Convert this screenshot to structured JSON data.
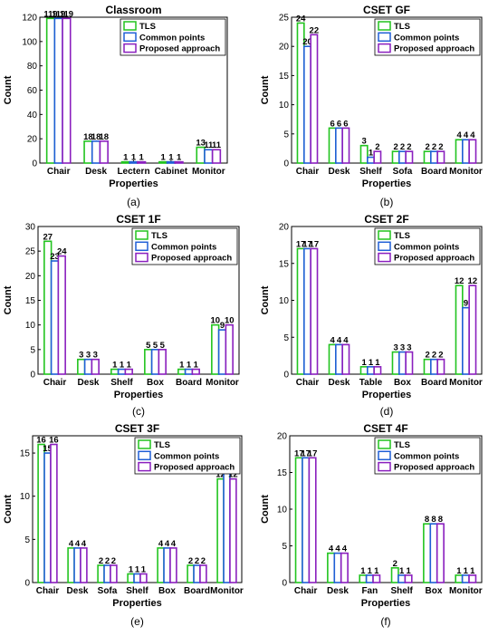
{
  "colors": {
    "tls": "#22c41f",
    "common": "#1f5fd6",
    "proposed": "#8a1fbe"
  },
  "legend_labels": [
    "TLS",
    "Common points",
    "Proposed approach"
  ],
  "chart_data": [
    {
      "type": "bar",
      "title": "Classroom",
      "caption": "(a)",
      "xlabel": "Properties",
      "ylabel": "Count",
      "ylim": [
        0,
        120
      ],
      "yticks": [
        0,
        20,
        40,
        60,
        80,
        100,
        120
      ],
      "categories": [
        "Chair",
        "Desk",
        "Lectern",
        "Cabinet",
        "Monitor"
      ],
      "series": [
        {
          "name": "TLS",
          "values": [
            119,
            18,
            1,
            1,
            13
          ]
        },
        {
          "name": "Common points",
          "values": [
            119,
            18,
            1,
            1,
            11
          ]
        },
        {
          "name": "Proposed approach",
          "values": [
            119,
            18,
            1,
            1,
            11
          ]
        }
      ],
      "legend": "top-right",
      "grid": false
    },
    {
      "type": "bar",
      "title": "CSET GF",
      "caption": "(b)",
      "xlabel": "Properties",
      "ylabel": "Count",
      "ylim": [
        0,
        25
      ],
      "yticks": [
        0,
        5,
        10,
        15,
        20,
        25
      ],
      "categories": [
        "Chair",
        "Desk",
        "Shelf",
        "Sofa",
        "Board",
        "Monitor"
      ],
      "series": [
        {
          "name": "TLS",
          "values": [
            24,
            6,
            3,
            2,
            2,
            4
          ]
        },
        {
          "name": "Common points",
          "values": [
            20,
            6,
            1,
            2,
            2,
            4
          ]
        },
        {
          "name": "Proposed approach",
          "values": [
            22,
            6,
            2,
            2,
            2,
            4
          ]
        }
      ],
      "legend": "top-right",
      "grid": false
    },
    {
      "type": "bar",
      "title": "CSET 1F",
      "caption": "(c)",
      "xlabel": "Properties",
      "ylabel": "Count",
      "ylim": [
        0,
        30
      ],
      "yticks": [
        0,
        5,
        10,
        15,
        20,
        25,
        30
      ],
      "categories": [
        "Chair",
        "Desk",
        "Shelf",
        "Box",
        "Board",
        "Monitor"
      ],
      "series": [
        {
          "name": "TLS",
          "values": [
            27,
            3,
            1,
            5,
            1,
            10
          ]
        },
        {
          "name": "Common points",
          "values": [
            23,
            3,
            1,
            5,
            1,
            9
          ]
        },
        {
          "name": "Proposed approach",
          "values": [
            24,
            3,
            1,
            5,
            1,
            10
          ]
        }
      ],
      "legend": "top-right",
      "grid": false
    },
    {
      "type": "bar",
      "title": "CSET 2F",
      "caption": "(d)",
      "xlabel": "Properties",
      "ylabel": "Count",
      "ylim": [
        0,
        20
      ],
      "yticks": [
        0,
        5,
        10,
        15,
        20
      ],
      "categories": [
        "Chair",
        "Desk",
        "Table",
        "Box",
        "Board",
        "Monitor"
      ],
      "series": [
        {
          "name": "TLS",
          "values": [
            17,
            4,
            1,
            3,
            2,
            12
          ]
        },
        {
          "name": "Common points",
          "values": [
            17,
            4,
            1,
            3,
            2,
            9
          ]
        },
        {
          "name": "Proposed approach",
          "values": [
            17,
            4,
            1,
            3,
            2,
            12
          ]
        }
      ],
      "legend": "top-right",
      "grid": false
    },
    {
      "type": "bar",
      "title": "CSET 3F",
      "caption": "(e)",
      "xlabel": "Properties",
      "ylabel": "Count",
      "ylim": [
        0,
        17
      ],
      "yticks": [
        0,
        5,
        10,
        15
      ],
      "categories": [
        "Chair",
        "Desk",
        "Sofa",
        "Shelf",
        "Box",
        "Board",
        "Monitor"
      ],
      "series": [
        {
          "name": "TLS",
          "values": [
            16,
            4,
            2,
            1,
            4,
            2,
            12
          ]
        },
        {
          "name": "Common points",
          "values": [
            15,
            4,
            2,
            1,
            4,
            2,
            13
          ]
        },
        {
          "name": "Proposed approach",
          "values": [
            16,
            4,
            2,
            1,
            4,
            2,
            12
          ]
        }
      ],
      "legend": "top-right",
      "grid": false
    },
    {
      "type": "bar",
      "title": "CSET 4F",
      "caption": "(f)",
      "xlabel": "Properties",
      "ylabel": "Count",
      "ylim": [
        0,
        20
      ],
      "yticks": [
        0,
        5,
        10,
        15,
        20
      ],
      "categories": [
        "Chair",
        "Desk",
        "Fan",
        "Shelf",
        "Box",
        "Monitor"
      ],
      "series": [
        {
          "name": "TLS",
          "values": [
            17,
            4,
            1,
            2,
            8,
            1
          ]
        },
        {
          "name": "Common points",
          "values": [
            17,
            4,
            1,
            1,
            8,
            1
          ]
        },
        {
          "name": "Proposed approach",
          "values": [
            17,
            4,
            1,
            1,
            8,
            1
          ]
        }
      ],
      "legend": "top-right",
      "grid": false
    }
  ]
}
